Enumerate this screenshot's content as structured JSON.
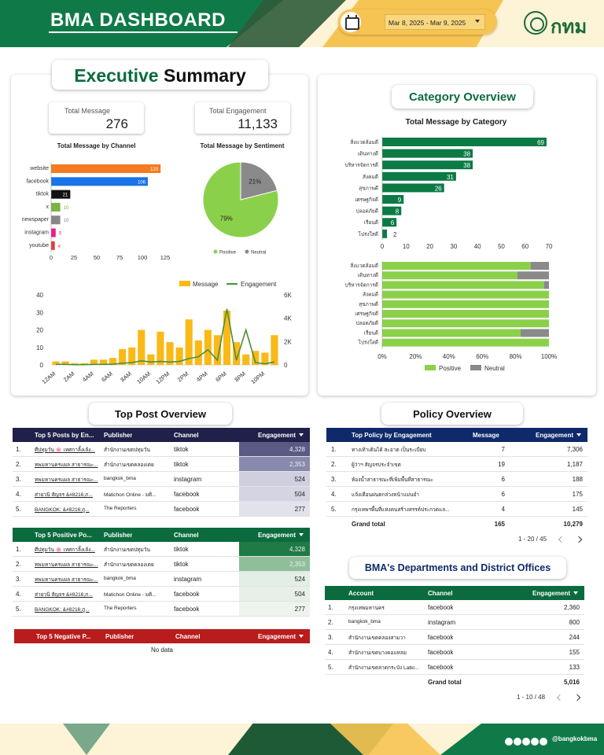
{
  "header": {
    "title": "BMA DASHBOARD",
    "date_range": "Mar 8, 2025 - Mar 9, 2025",
    "logo_text": "กทม",
    "icons": {
      "calendar": "calendar-icon",
      "dropdown": "chevron-down-icon"
    }
  },
  "executive": {
    "title_part1": "Executive",
    "title_part2": "Summary",
    "kpis": [
      {
        "label": "Total Message",
        "value": "276"
      },
      {
        "label": "Total Engagement",
        "value": "11,133"
      }
    ]
  },
  "channel_chart": {
    "title": "Total Message by Channel",
    "type": "bar",
    "categories": [
      "website",
      "facebook",
      "tiktok",
      "x",
      "newspaper",
      "instagram",
      "youtube"
    ],
    "values": [
      120,
      106,
      21,
      10,
      10,
      5,
      4
    ],
    "colors": [
      "#f47b20",
      "#1a73e8",
      "#111111",
      "#7cb342",
      "#888888",
      "#e91e8c",
      "#e53935"
    ],
    "xlim": [
      0,
      125
    ],
    "xticks": [
      "0",
      "25",
      "50",
      "75",
      "100",
      "125"
    ]
  },
  "sentiment_chart": {
    "title": "Total Message by Sentiment",
    "type": "pie",
    "slices": [
      {
        "name": "Positive",
        "value": 79,
        "label": "79%",
        "color": "#8bd04a"
      },
      {
        "name": "Neutral",
        "value": 21,
        "label": "21%",
        "color": "#8a8a8a"
      }
    ]
  },
  "hourly_chart": {
    "type": "bar+line",
    "legend": [
      "Message",
      "Engagement"
    ],
    "colors": {
      "bar": "#f9b916",
      "line": "#4a8f3c"
    },
    "x_labels": [
      "12AM",
      "2AM",
      "4AM",
      "6AM",
      "8AM",
      "10AM",
      "12PM",
      "2PM",
      "4PM",
      "6PM",
      "8PM",
      "10PM"
    ],
    "y_left_ticks": [
      "0",
      "10",
      "20",
      "30",
      "40"
    ],
    "y_right_ticks": [
      "0",
      "2K",
      "4K",
      "6K"
    ],
    "ylim_left": [
      0,
      40
    ],
    "ylim_right": [
      0,
      6000
    ],
    "message": [
      2,
      2,
      1,
      1,
      3,
      3,
      4,
      9,
      10,
      20,
      6,
      19,
      13,
      10,
      26,
      14,
      20,
      17,
      31,
      13,
      6,
      8,
      7,
      17
    ],
    "engagement": [
      50,
      50,
      20,
      20,
      50,
      50,
      60,
      150,
      200,
      350,
      250,
      300,
      250,
      300,
      550,
      700,
      1300,
      400,
      4800,
      400,
      3000,
      200,
      100,
      250
    ]
  },
  "category": {
    "title": "Category Overview",
    "chart_title": "Total Message by Category",
    "type": "bar",
    "categories": [
      "สิ่งแวดล้อมดี",
      "เดินทางดี",
      "บริหารจัดการดี",
      "สังคมดี",
      "สุขภาพดี",
      "เศรษฐกิจดี",
      "ปลอดภัยดี",
      "เรียนดี",
      "โปร่งใสดี"
    ],
    "values": [
      69,
      38,
      38,
      31,
      26,
      9,
      8,
      6,
      2
    ],
    "color": "#0b7a45",
    "xlim": [
      0,
      70
    ],
    "xticks": [
      "0",
      "10",
      "20",
      "30",
      "40",
      "50",
      "60",
      "70"
    ],
    "sentiment_positive_pct": [
      89,
      81,
      97,
      100,
      100,
      100,
      100,
      83,
      100
    ],
    "sentiment_xticks": [
      "0%",
      "20%",
      "40%",
      "60%",
      "80%",
      "100%"
    ],
    "sentiment_legend": [
      "Positive",
      "Neutral"
    ],
    "sentiment_colors": {
      "positive": "#8bd04a",
      "neutral": "#8a8a8a"
    }
  },
  "top_post": {
    "title": "Top Post Overview",
    "tables": [
      {
        "name": "top5",
        "headers": [
          "Top 5 Posts by En...",
          "Publisher",
          "Channel",
          "Engagement"
        ],
        "header_color": "#20204a",
        "heat_colors": [
          "#5a5a85",
          "#8989ad",
          "#cfcfe0",
          "#d4d4e3",
          "#e2e2ec"
        ],
        "rows": [
          {
            "n": "1.",
            "post": "ศีปทุมวัน 🌸 เทศกาลิ้งเล้ง...",
            "publisher": "สำนักงานเขตปทุมวัน",
            "channel": "tiktok",
            "eng": "4,328"
          },
          {
            "n": "2.",
            "post": "ทพมหานครแผล สาธารณะ...",
            "publisher": "สำนักงานเขตคลองเตย",
            "channel": "tiktok",
            "eng": "2,353"
          },
          {
            "n": "3.",
            "post": "ทพมหานครแผล สาธารณะ...",
            "publisher": "bangkok_bma",
            "channel": "instagram",
            "eng": "524"
          },
          {
            "n": "4.",
            "post": "ส่ายวนิ สัญจร &#8216;ภ...",
            "publisher": "Matichon Online - มติ...",
            "channel": "facebook",
            "eng": "504"
          },
          {
            "n": "5.",
            "post": "BANGKOK: &#8216;ภู...",
            "publisher": "The Reporters",
            "channel": "facebook",
            "eng": "277"
          }
        ]
      },
      {
        "name": "positive",
        "headers": [
          "Top 5 Positive Po...",
          "Publisher",
          "Channel",
          "Engagement"
        ],
        "header_color": "#0b6b3e",
        "heat_colors": [
          "#1f7a45",
          "#8fbf9a",
          "#e3eee5",
          "#e6f0e8",
          "#edf4ee"
        ],
        "rows": [
          {
            "n": "1.",
            "post": "ศีปทุมวัน 🌸 เทศกาลิ้งเล้ง...",
            "publisher": "สำนักงานเขตปทุมวัน",
            "channel": "tiktok",
            "eng": "4,328"
          },
          {
            "n": "2.",
            "post": "ทพมหานครแผล สาธารณะ...",
            "publisher": "สำนักงานเขตคลองเตย",
            "channel": "tiktok",
            "eng": "2,353"
          },
          {
            "n": "3.",
            "post": "ทพมหานครแผล สาธารณะ...",
            "publisher": "bangkok_bma",
            "channel": "instagram",
            "eng": "524"
          },
          {
            "n": "4.",
            "post": "ส่ายวนิ สัญจร &#8216;ภ...",
            "publisher": "Matichon Online - มติ...",
            "channel": "facebook",
            "eng": "504"
          },
          {
            "n": "5.",
            "post": "BANGKOK: &#8216;ภู...",
            "publisher": "The Reporters",
            "channel": "facebook",
            "eng": "277"
          }
        ]
      },
      {
        "name": "negative",
        "headers": [
          "Top 5 Negative P...",
          "Publisher",
          "Channel",
          "Engagement"
        ],
        "header_color": "#b81c1c",
        "empty_text": "No data"
      }
    ]
  },
  "policy": {
    "title": "Policy Overview",
    "headers": [
      "Top Policy by Engagement",
      "Message",
      "Engagement"
    ],
    "header_color": "#0f2a6a",
    "rows": [
      {
        "n": "1.",
        "name": "ทางเท้าเดินได้ สะอาด เป็นระเบียบ",
        "msg": "7",
        "eng": "7,306"
      },
      {
        "n": "2.",
        "name": "ผู้ว่าฯ สัญจรประจำเขต",
        "msg": "19",
        "eng": "1,187"
      },
      {
        "n": "3.",
        "name": "ห้องน้ำสาธารณะที่เพิ่มพื้นที่สาธารณะ",
        "msg": "6",
        "eng": "188"
      },
      {
        "n": "4.",
        "name": "แจ้งเตือนฝนตกล่วงหน้าแม่นยำ",
        "msg": "6",
        "eng": "175"
      },
      {
        "n": "5.",
        "name": "กรุงเทพฯพื้นที่แห่งคนสร้างสรรค์ประกวดแล...",
        "msg": "4",
        "eng": "145"
      }
    ],
    "total_label": "Grand total",
    "total_msg": "165",
    "total_eng": "10,279",
    "pager": "1 - 20 / 45"
  },
  "departments": {
    "title": "BMA's Departments and District Offices",
    "headers": [
      "Account",
      "Channel",
      "Engagement"
    ],
    "header_color": "#0b6b3e",
    "rows": [
      {
        "n": "1.",
        "account": "กรุงเทพมหานคร",
        "channel": "facebook",
        "eng": "2,360"
      },
      {
        "n": "2.",
        "account": "bangkok_bma",
        "channel": "instagram",
        "eng": "800"
      },
      {
        "n": "3.",
        "account": "สำนักงานเขตคลองสามวา",
        "channel": "facebook",
        "eng": "244"
      },
      {
        "n": "4.",
        "account": "สำนักงานเขตบางคอแหลม",
        "channel": "facebook",
        "eng": "155"
      },
      {
        "n": "5.",
        "account": "สำนักงานเขตลาดกระบัง Latkr...",
        "channel": "facebook",
        "eng": "133"
      }
    ],
    "total_label": "Grand total",
    "total_eng": "5,016",
    "pager": "1 - 10 / 48"
  },
  "footer": {
    "handle": "@bangkokbma",
    "icons": [
      "x-icon",
      "facebook-icon",
      "youtube-icon",
      "instagram-icon",
      "tiktok-icon"
    ]
  }
}
